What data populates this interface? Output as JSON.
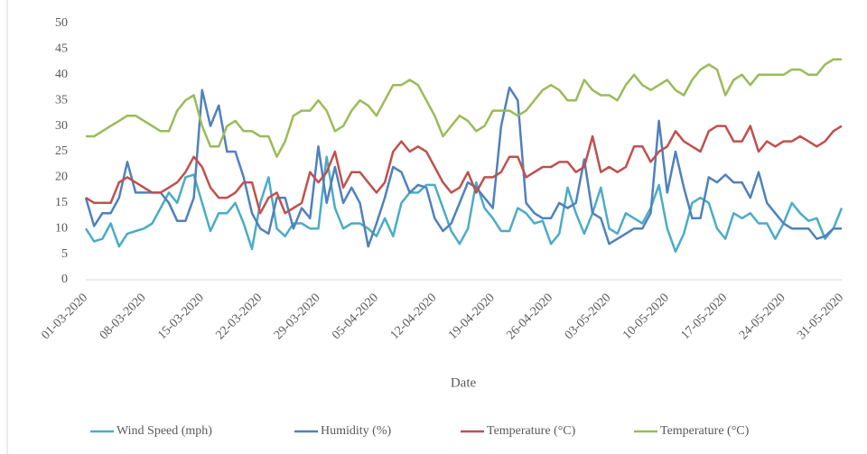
{
  "chart_data": {
    "type": "line",
    "x_label": "Date",
    "categories": [
      "01-03-2020",
      null,
      null,
      null,
      null,
      null,
      null,
      "08-03-2020",
      null,
      null,
      null,
      null,
      null,
      null,
      "15-03-2020",
      null,
      null,
      null,
      null,
      null,
      null,
      "22-03-2020",
      null,
      null,
      null,
      null,
      null,
      null,
      "29-03-2020",
      null,
      null,
      null,
      null,
      null,
      null,
      "05-04-2020",
      null,
      null,
      null,
      null,
      null,
      null,
      "12-04-2020",
      null,
      null,
      null,
      null,
      null,
      null,
      "19-04-2020",
      null,
      null,
      null,
      null,
      null,
      null,
      "26-04-2020",
      null,
      null,
      null,
      null,
      null,
      null,
      "03-05-2020",
      null,
      null,
      null,
      null,
      null,
      null,
      "10-05-2020",
      null,
      null,
      null,
      null,
      null,
      null,
      "17-05-2020",
      null,
      null,
      null,
      null,
      null,
      null,
      "24-05-2020",
      null,
      null,
      null,
      null,
      null,
      null,
      "31-05-2020"
    ],
    "series": [
      {
        "name": "Wind Speed (mph)",
        "color": "#4bacc6",
        "values": [
          10,
          7.5,
          8,
          11,
          6.5,
          9,
          9.5,
          10,
          11,
          14,
          17,
          15,
          20,
          20.5,
          15,
          9.5,
          13,
          13,
          15,
          11,
          6,
          15,
          20,
          10,
          8.5,
          11,
          11,
          10,
          10,
          24,
          14,
          10,
          11,
          11,
          10,
          8.5,
          12,
          8.5,
          15,
          17,
          17,
          18.5,
          18.5,
          14,
          9.5,
          7,
          10,
          19,
          14,
          12,
          9.5,
          9.5,
          14,
          13,
          11,
          11.5,
          7,
          9,
          18,
          13,
          9,
          13,
          18,
          10,
          9,
          13,
          12,
          11,
          14,
          18.5,
          10,
          5.5,
          9,
          15,
          16,
          15,
          10,
          8,
          13,
          12,
          13,
          11,
          11,
          8,
          11,
          15,
          13,
          11.5,
          12,
          8,
          10,
          14
        ]
      },
      {
        "name": "Humidity (%)",
        "color": "#4f81bd",
        "values": [
          16,
          10.5,
          13,
          13,
          16,
          23,
          17,
          17,
          17,
          17,
          15,
          11.5,
          11.5,
          16,
          37,
          30,
          34,
          25,
          25,
          20,
          13,
          10,
          9,
          16,
          16,
          10,
          14,
          12,
          26,
          15,
          22,
          15,
          18,
          15,
          6.5,
          11,
          16,
          22,
          21,
          17,
          18.5,
          18,
          12,
          9.5,
          11,
          15,
          19,
          18,
          16,
          14,
          30,
          37.5,
          35,
          15,
          13,
          12,
          12,
          15,
          14,
          15,
          23.5,
          13,
          12,
          7,
          8,
          9,
          10,
          10,
          13,
          31,
          17,
          25,
          18,
          12,
          12,
          20,
          19,
          20.5,
          19,
          19,
          16,
          21,
          15,
          13,
          11,
          10,
          10,
          10,
          8,
          8.5,
          10,
          10
        ]
      },
      {
        "name": "Temperature (°C)",
        "color": "#c0504d",
        "values": [
          16,
          15,
          15,
          15,
          19,
          20,
          19,
          18,
          17,
          17,
          18,
          19,
          21,
          24,
          22,
          18,
          16,
          16,
          17,
          19,
          19,
          13,
          16,
          17,
          13,
          14,
          15,
          21,
          19,
          21,
          25,
          18,
          21,
          21,
          19,
          17,
          19,
          25,
          27,
          25,
          26,
          25,
          22,
          19,
          17,
          18,
          21,
          17,
          20,
          20,
          21,
          24,
          24,
          20,
          21,
          22,
          22,
          23,
          23,
          21,
          22,
          28,
          21,
          22,
          21,
          22,
          26,
          26,
          23,
          25,
          26,
          29,
          27,
          26,
          25,
          29,
          30,
          30,
          27,
          27,
          30,
          25,
          27,
          26,
          27,
          27,
          28,
          27,
          26,
          27,
          29,
          30
        ]
      },
      {
        "name": "Temperature (°C)",
        "color": "#9bbb59",
        "values": [
          28,
          28,
          29,
          30,
          31,
          32,
          32,
          31,
          30,
          29,
          29,
          33,
          35,
          36,
          30,
          26,
          26,
          30,
          31,
          29,
          29,
          28,
          28,
          24,
          27,
          32,
          33,
          33,
          35,
          33,
          29,
          30,
          33,
          35,
          34,
          32,
          35,
          38,
          38,
          39,
          38,
          35,
          32,
          28,
          30,
          32,
          31,
          29,
          30,
          33,
          33,
          33,
          32,
          33,
          35,
          37,
          38,
          37,
          35,
          35,
          39,
          37,
          36,
          36,
          35,
          38,
          40,
          38,
          37,
          38,
          39,
          37,
          36,
          39,
          41,
          42,
          41,
          36,
          39,
          40,
          38,
          40,
          40,
          40,
          40,
          41,
          41,
          40,
          40,
          42,
          43,
          43
        ]
      }
    ],
    "ylim": [
      0,
      50
    ],
    "yticks": [
      0,
      5,
      10,
      15,
      20,
      25,
      30,
      35,
      40,
      45,
      50
    ],
    "grid": false,
    "legend": "bottom"
  }
}
